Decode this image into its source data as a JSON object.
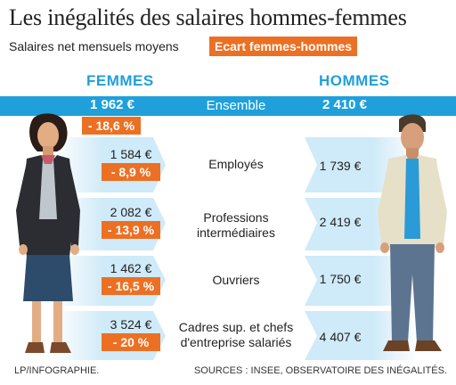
{
  "title": "Les inégalités des salaires hommes-femmes",
  "subtitle": "Salaires net mensuels moyens",
  "gap_legend": "Ecart femmes-hommes",
  "columns": {
    "women": "FEMMES",
    "men": "HOMMES"
  },
  "overall": {
    "label": "Ensemble",
    "women": "1 962 €",
    "men": "2 410 €",
    "gap": "- 18,6 %"
  },
  "rows": [
    {
      "label": "Employés",
      "women": "1 584 €",
      "men": "1 739 €",
      "gap": "- 8,9 %"
    },
    {
      "label_line1": "Professions",
      "label_line2": "intermédiaires",
      "women": "2 082 €",
      "men": "2 419 €",
      "gap": "- 13,9 %"
    },
    {
      "label": "Ouvriers",
      "women": "1 462 €",
      "men": "1 750 €",
      "gap": "- 16,5 %"
    },
    {
      "label_line1": "Cadres sup. et chefs",
      "label_line2": "d'entreprise salariés",
      "women": "3 524 €",
      "men": "4 407 €",
      "gap": "- 20 %"
    }
  ],
  "footer": {
    "credit": "LP/INFOGRAPHIE.",
    "sources": "SOURCES : INSEE, OBSERVATOIRE DES INÉGALITÉS."
  },
  "colors": {
    "accent_orange": "#ec7023",
    "accent_blue": "#1fa0db",
    "band_light": "#cfeaf8"
  },
  "chart_data": {
    "type": "table",
    "title": "Les inégalités des salaires hommes-femmes",
    "subtitle": "Salaires net mensuels moyens",
    "categories": [
      "Ensemble",
      "Employés",
      "Professions intermédiaires",
      "Ouvriers",
      "Cadres sup. et chefs d'entreprise salariés"
    ],
    "series": [
      {
        "name": "FEMMES",
        "values": [
          1962,
          1584,
          2082,
          1462,
          3524
        ]
      },
      {
        "name": "HOMMES",
        "values": [
          2410,
          1739,
          2419,
          1750,
          4407
        ]
      },
      {
        "name": "Ecart femmes-hommes",
        "values": [
          -18.6,
          -8.9,
          -13.9,
          -16.5,
          -20
        ]
      }
    ]
  }
}
